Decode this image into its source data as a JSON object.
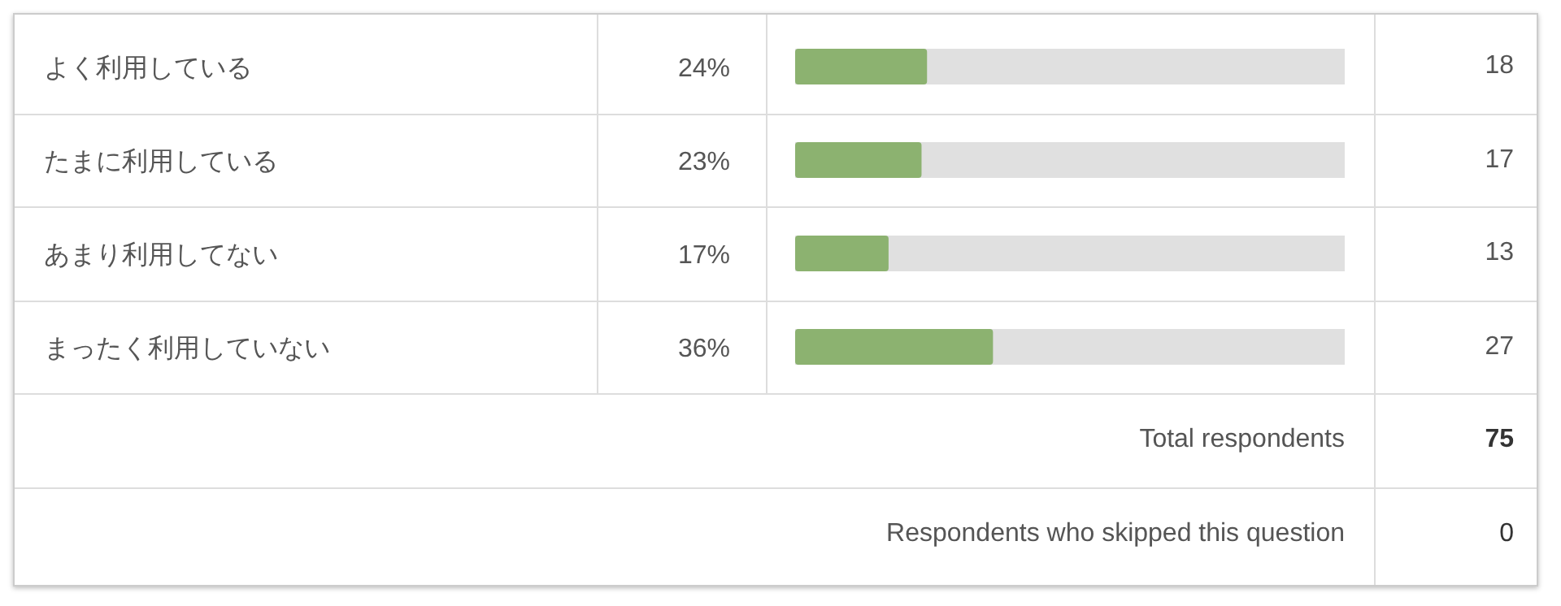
{
  "chart_data": {
    "type": "bar",
    "orientation": "horizontal",
    "categories": [
      "よく利用している",
      "たまに利用している",
      "あまり利用してない",
      "まったく利用していない"
    ],
    "values": [
      24,
      23,
      17,
      36
    ],
    "color": "#8cb270",
    "xlim": [
      0,
      100
    ],
    "tick_labels": "y",
    "value_labels": [
      "24%",
      "23%",
      "17%",
      "36%"
    ],
    "annotations": [
      "18",
      "17",
      "13",
      "27",
      "Total respondents",
      "75",
      "Respondents who skipped this question",
      "0"
    ]
  }
}
